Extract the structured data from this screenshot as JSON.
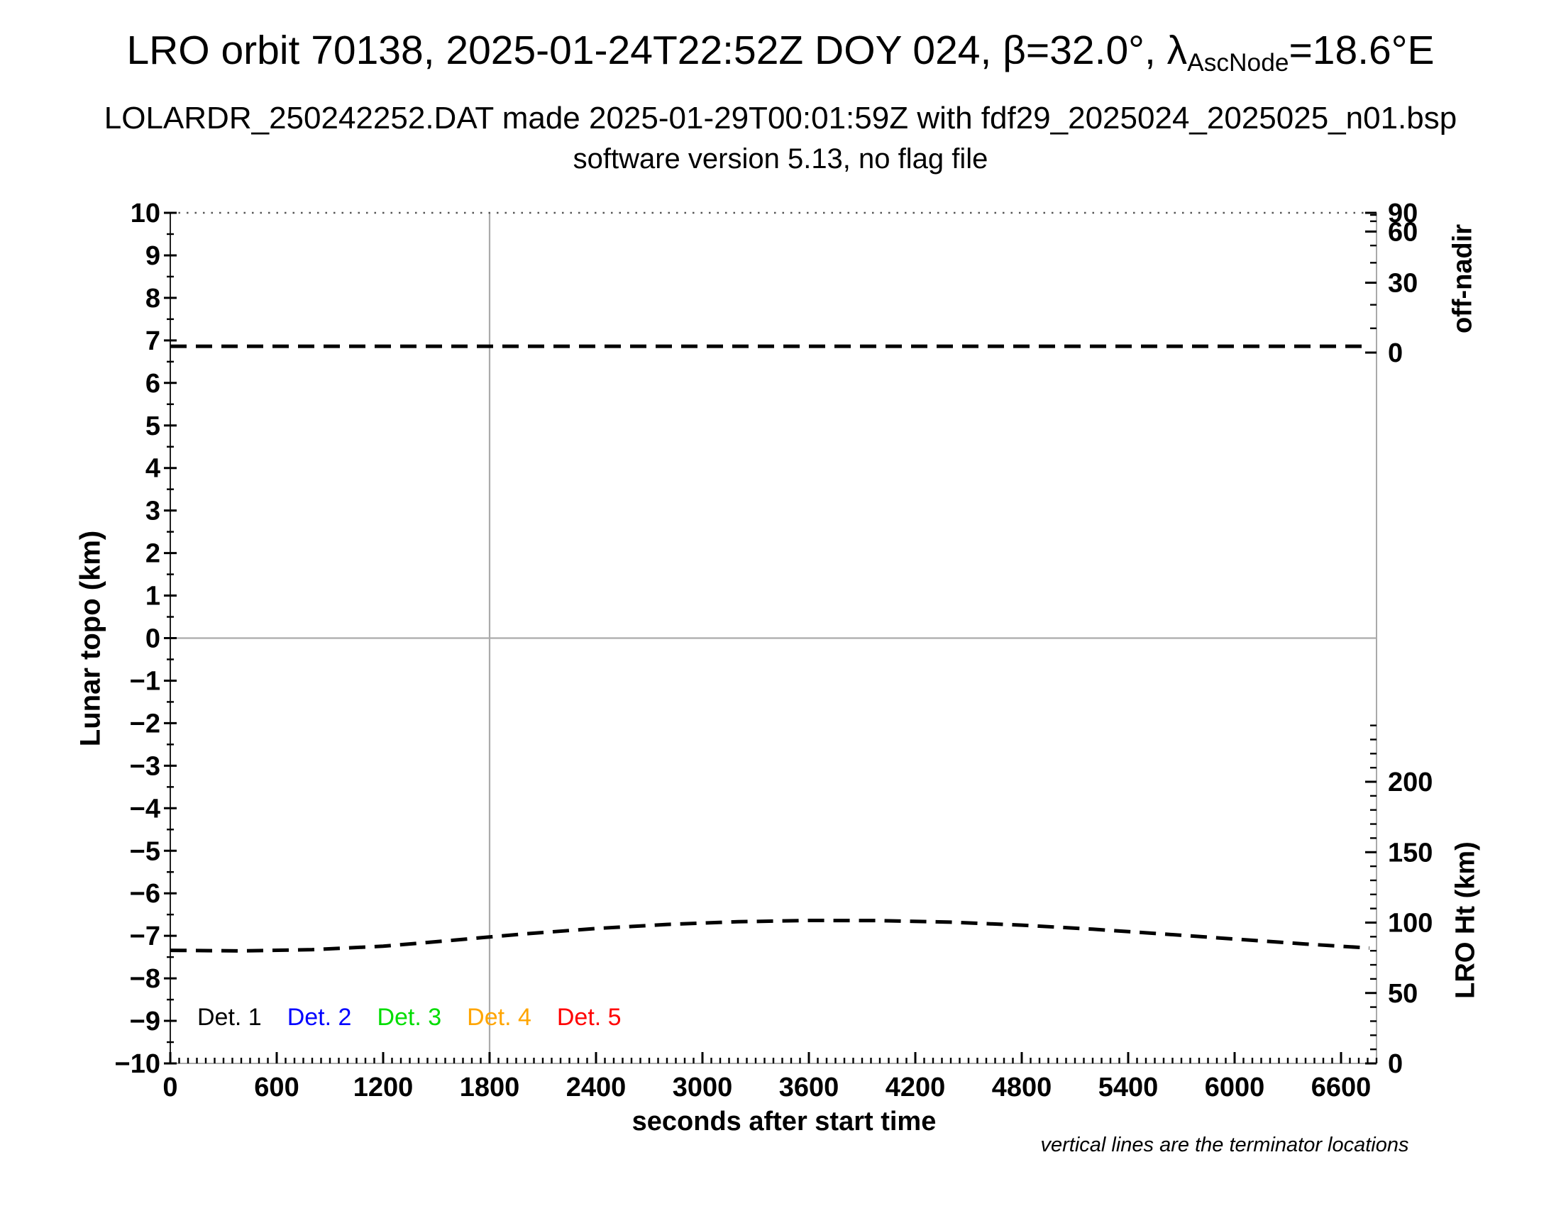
{
  "header": {
    "title_prefix": "LRO orbit 70138, 2025-01-24T22:52Z DOY 024, β=32.0°, λ",
    "title_sub": "AscNode",
    "title_suffix": "=18.6°E",
    "subtitle": "LOLARDR_250242252.DAT made 2025-01-29T00:01:59Z with fdf29_2025024_2025025_n01.bsp",
    "subsubtitle": "software version 5.13, no flag file"
  },
  "footnote": "vertical lines are the terminator locations",
  "chart_data": {
    "type": "line",
    "xlabel": "seconds after start time",
    "x_axis": {
      "min": 0,
      "max": 6800,
      "major_ticks": [
        0,
        600,
        1200,
        1800,
        2400,
        3000,
        3600,
        4200,
        4800,
        5400,
        6000,
        6600
      ],
      "minor_step": 50
    },
    "left_axis": {
      "label": "Lunar topo (km)",
      "min": -10,
      "max": 10,
      "major_ticks": [
        10,
        9,
        8,
        7,
        6,
        5,
        4,
        3,
        2,
        1,
        0,
        -1,
        -2,
        -3,
        -4,
        -5,
        -6,
        -7,
        -8,
        -9,
        -10
      ],
      "minor_step": 0.5
    },
    "right_top_axis": {
      "label": "off-nadir",
      "units": "deg",
      "scale": "sine",
      "major_ticks": [
        90,
        60,
        30,
        0
      ],
      "minor_step": 10
    },
    "right_bottom_axis": {
      "label": "LRO Ht (km)",
      "major_ticks": [
        200,
        150,
        100,
        50,
        0
      ],
      "minor_step": 10,
      "minor_max": 240
    },
    "terminator_lines_x": [
      1800
    ],
    "zero_line_y": 0,
    "grid": false,
    "legend_position": "bottom-left-inside",
    "legend": [
      {
        "label": "Det. 1",
        "color": "#000000"
      },
      {
        "label": "Det. 2",
        "color": "#0000ff"
      },
      {
        "label": "Det. 3",
        "color": "#00dd00"
      },
      {
        "label": "Det. 4",
        "color": "#ffa500"
      },
      {
        "label": "Det. 5",
        "color": "#ff0000"
      }
    ],
    "series": [
      {
        "name": "off-nadir angle",
        "axis": "right_top",
        "style": "dashed",
        "color": "#000000",
        "points": [
          [
            0,
            2.6
          ],
          [
            6760,
            2.6
          ]
        ]
      },
      {
        "name": "LRO height",
        "axis": "right_bottom",
        "style": "dashed",
        "color": "#000000",
        "points": [
          [
            0,
            80.3
          ],
          [
            400,
            79.9
          ],
          [
            800,
            80.8
          ],
          [
            1200,
            83.2
          ],
          [
            1600,
            87.5
          ],
          [
            1800,
            89.8
          ],
          [
            2000,
            92.0
          ],
          [
            2400,
            95.8
          ],
          [
            2800,
            98.7
          ],
          [
            3200,
            100.6
          ],
          [
            3600,
            101.5
          ],
          [
            4000,
            101.4
          ],
          [
            4400,
            100.3
          ],
          [
            4800,
            98.2
          ],
          [
            5200,
            95.3
          ],
          [
            5600,
            91.9
          ],
          [
            6000,
            88.3
          ],
          [
            6400,
            84.8
          ],
          [
            6760,
            81.9
          ]
        ]
      }
    ]
  }
}
